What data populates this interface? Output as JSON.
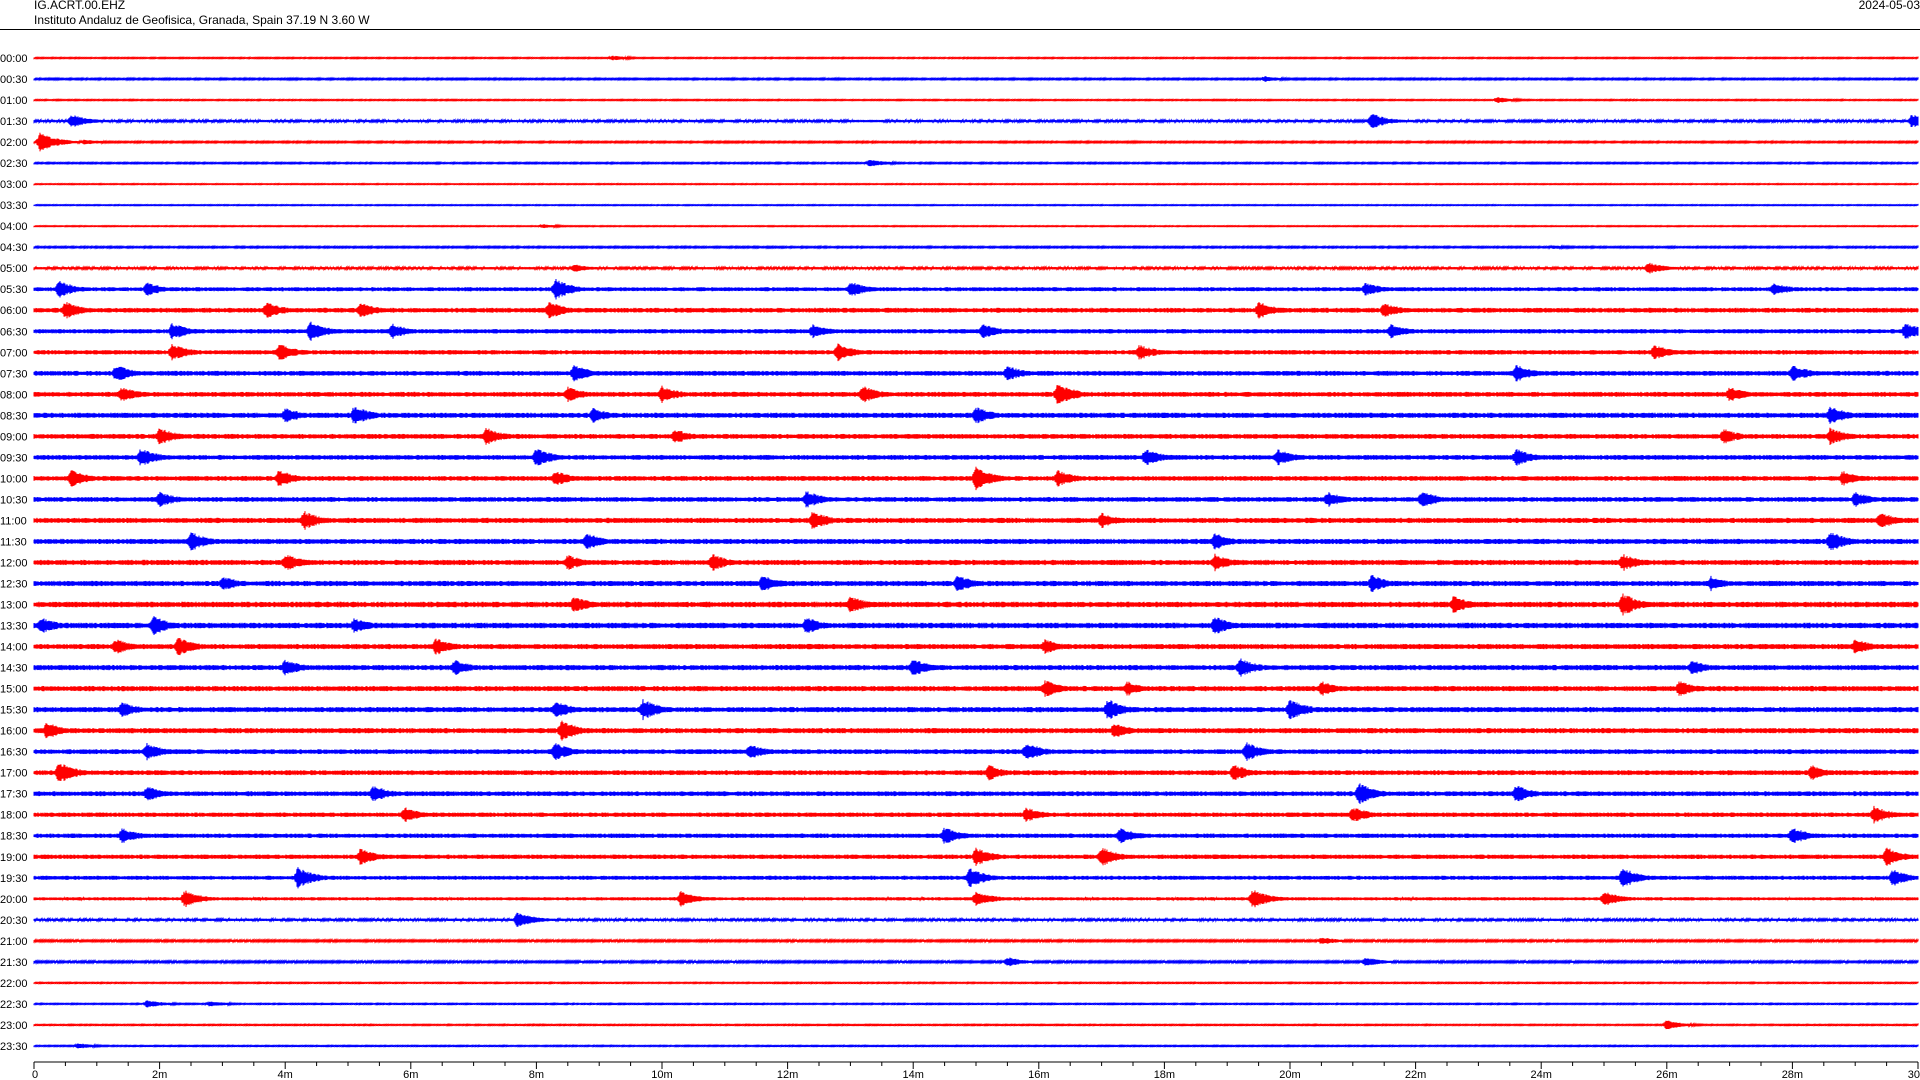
{
  "header": {
    "station": "IG.ACRT.00.EHZ",
    "institute": "Instituto Andaluz de Geofisica, Granada, Spain  37.19 N 3.60 W",
    "date": "2024-05-03"
  },
  "chart_data": {
    "type": "helicorder",
    "title": "IG.ACRT.00.EHZ",
    "x_unit": "minutes",
    "xlim": [
      0,
      30
    ],
    "x_ticks": [
      {
        "value": 0,
        "label": "0"
      },
      {
        "value": 2,
        "label": "2m"
      },
      {
        "value": 4,
        "label": "4m"
      },
      {
        "value": 6,
        "label": "6m"
      },
      {
        "value": 8,
        "label": "8m"
      },
      {
        "value": 10,
        "label": "10m"
      },
      {
        "value": 12,
        "label": "12m"
      },
      {
        "value": 14,
        "label": "14m"
      },
      {
        "value": 16,
        "label": "16m"
      },
      {
        "value": 18,
        "label": "18m"
      },
      {
        "value": 20,
        "label": "20m"
      },
      {
        "value": 22,
        "label": "22m"
      },
      {
        "value": 24,
        "label": "24m"
      },
      {
        "value": 26,
        "label": "26m"
      },
      {
        "value": 28,
        "label": "28m"
      },
      {
        "value": 30,
        "label": "30"
      }
    ],
    "row_labels": [
      "00:00",
      "00:30",
      "01:00",
      "01:30",
      "02:00",
      "02:30",
      "03:00",
      "03:30",
      "04:00",
      "04:30",
      "05:00",
      "05:30",
      "06:00",
      "06:30",
      "07:00",
      "07:30",
      "08:00",
      "08:30",
      "09:00",
      "09:30",
      "10:00",
      "10:30",
      "11:00",
      "11:30",
      "12:00",
      "12:30",
      "13:00",
      "13:30",
      "14:00",
      "14:30",
      "15:00",
      "15:30",
      "16:00",
      "16:30",
      "17:00",
      "17:30",
      "18:00",
      "18:30",
      "19:00",
      "19:30",
      "20:00",
      "20:30",
      "21:00",
      "21:30",
      "22:00",
      "22:30",
      "23:00",
      "23:30"
    ],
    "trace_colors": [
      "#ff0000",
      "#0000ff"
    ],
    "noise_level": [
      0.6,
      0.8,
      0.6,
      1.2,
      0.8,
      0.7,
      0.5,
      0.5,
      0.5,
      0.8,
      1.2,
      2.0,
      2.4,
      2.2,
      2.2,
      2.4,
      2.4,
      2.6,
      2.4,
      2.4,
      2.4,
      2.4,
      2.6,
      2.6,
      2.6,
      2.6,
      2.8,
      2.8,
      2.6,
      2.6,
      2.6,
      2.6,
      2.6,
      2.4,
      2.4,
      2.4,
      2.2,
      2.2,
      2.2,
      2.0,
      1.6,
      1.2,
      1.0,
      1.0,
      0.6,
      0.6,
      0.6,
      0.6
    ],
    "events": [
      {
        "row": 0,
        "t": 9.2,
        "amp": 2.5
      },
      {
        "row": 1,
        "t": 19.6,
        "amp": 3
      },
      {
        "row": 2,
        "t": 23.3,
        "amp": 3
      },
      {
        "row": 3,
        "t": 0.6,
        "amp": 7
      },
      {
        "row": 3,
        "t": 21.3,
        "amp": 8
      },
      {
        "row": 3,
        "t": 29.9,
        "amp": 7
      },
      {
        "row": 4,
        "t": 0.1,
        "amp": 10
      },
      {
        "row": 4,
        "t": 0.8,
        "amp": 3
      },
      {
        "row": 5,
        "t": 13.3,
        "amp": 4
      },
      {
        "row": 8,
        "t": 8.1,
        "amp": 2
      },
      {
        "row": 9,
        "t": 24.2,
        "amp": 2
      },
      {
        "row": 10,
        "t": 25.7,
        "amp": 6
      },
      {
        "row": 10,
        "t": 8.6,
        "amp": 4
      },
      {
        "row": 11,
        "t": 0.4,
        "amp": 9
      },
      {
        "row": 11,
        "t": 1.8,
        "amp": 7
      },
      {
        "row": 11,
        "t": 8.3,
        "amp": 11
      },
      {
        "row": 11,
        "t": 13.0,
        "amp": 8
      },
      {
        "row": 11,
        "t": 21.2,
        "amp": 7
      },
      {
        "row": 11,
        "t": 27.7,
        "amp": 7
      },
      {
        "row": 12,
        "t": 0.5,
        "amp": 9
      },
      {
        "row": 12,
        "t": 3.7,
        "amp": 9
      },
      {
        "row": 12,
        "t": 5.2,
        "amp": 8
      },
      {
        "row": 12,
        "t": 8.2,
        "amp": 9
      },
      {
        "row": 12,
        "t": 19.5,
        "amp": 9
      },
      {
        "row": 12,
        "t": 21.5,
        "amp": 8
      },
      {
        "row": 13,
        "t": 2.2,
        "amp": 9
      },
      {
        "row": 13,
        "t": 4.4,
        "amp": 10
      },
      {
        "row": 13,
        "t": 5.7,
        "amp": 8
      },
      {
        "row": 13,
        "t": 12.4,
        "amp": 7
      },
      {
        "row": 13,
        "t": 15.1,
        "amp": 8
      },
      {
        "row": 13,
        "t": 21.6,
        "amp": 8
      },
      {
        "row": 13,
        "t": 29.8,
        "amp": 9
      },
      {
        "row": 14,
        "t": 2.2,
        "amp": 9
      },
      {
        "row": 14,
        "t": 3.9,
        "amp": 9
      },
      {
        "row": 14,
        "t": 12.8,
        "amp": 9
      },
      {
        "row": 14,
        "t": 17.6,
        "amp": 8
      },
      {
        "row": 14,
        "t": 25.8,
        "amp": 8
      },
      {
        "row": 15,
        "t": 1.3,
        "amp": 9
      },
      {
        "row": 15,
        "t": 8.6,
        "amp": 9
      },
      {
        "row": 15,
        "t": 15.5,
        "amp": 8
      },
      {
        "row": 15,
        "t": 23.6,
        "amp": 9
      },
      {
        "row": 15,
        "t": 28.0,
        "amp": 9
      },
      {
        "row": 16,
        "t": 1.4,
        "amp": 8
      },
      {
        "row": 16,
        "t": 8.5,
        "amp": 8
      },
      {
        "row": 16,
        "t": 10.0,
        "amp": 9
      },
      {
        "row": 16,
        "t": 13.2,
        "amp": 9
      },
      {
        "row": 16,
        "t": 16.3,
        "amp": 12
      },
      {
        "row": 16,
        "t": 27.0,
        "amp": 8
      },
      {
        "row": 17,
        "t": 4.0,
        "amp": 8
      },
      {
        "row": 17,
        "t": 5.1,
        "amp": 10
      },
      {
        "row": 17,
        "t": 8.9,
        "amp": 8
      },
      {
        "row": 17,
        "t": 15.0,
        "amp": 9
      },
      {
        "row": 17,
        "t": 28.6,
        "amp": 10
      },
      {
        "row": 18,
        "t": 2.0,
        "amp": 9
      },
      {
        "row": 18,
        "t": 7.2,
        "amp": 9
      },
      {
        "row": 18,
        "t": 10.2,
        "amp": 8
      },
      {
        "row": 18,
        "t": 26.9,
        "amp": 8
      },
      {
        "row": 18,
        "t": 28.6,
        "amp": 9
      },
      {
        "row": 19,
        "t": 1.7,
        "amp": 10
      },
      {
        "row": 19,
        "t": 8.0,
        "amp": 10
      },
      {
        "row": 19,
        "t": 17.7,
        "amp": 9
      },
      {
        "row": 19,
        "t": 19.8,
        "amp": 9
      },
      {
        "row": 19,
        "t": 23.6,
        "amp": 9
      },
      {
        "row": 20,
        "t": 0.6,
        "amp": 9
      },
      {
        "row": 20,
        "t": 3.9,
        "amp": 9
      },
      {
        "row": 20,
        "t": 8.3,
        "amp": 8
      },
      {
        "row": 20,
        "t": 15.0,
        "amp": 12
      },
      {
        "row": 20,
        "t": 16.3,
        "amp": 9
      },
      {
        "row": 20,
        "t": 28.8,
        "amp": 8
      },
      {
        "row": 21,
        "t": 2.0,
        "amp": 8
      },
      {
        "row": 21,
        "t": 12.3,
        "amp": 9
      },
      {
        "row": 21,
        "t": 20.6,
        "amp": 8
      },
      {
        "row": 21,
        "t": 22.1,
        "amp": 9
      },
      {
        "row": 21,
        "t": 29.0,
        "amp": 8
      },
      {
        "row": 22,
        "t": 4.3,
        "amp": 10
      },
      {
        "row": 22,
        "t": 12.4,
        "amp": 10
      },
      {
        "row": 22,
        "t": 17.0,
        "amp": 8
      },
      {
        "row": 22,
        "t": 29.4,
        "amp": 9
      },
      {
        "row": 23,
        "t": 2.5,
        "amp": 10
      },
      {
        "row": 23,
        "t": 8.8,
        "amp": 9
      },
      {
        "row": 23,
        "t": 18.8,
        "amp": 9
      },
      {
        "row": 23,
        "t": 28.6,
        "amp": 11
      },
      {
        "row": 24,
        "t": 4.0,
        "amp": 9
      },
      {
        "row": 24,
        "t": 8.5,
        "amp": 8
      },
      {
        "row": 24,
        "t": 10.8,
        "amp": 9
      },
      {
        "row": 24,
        "t": 18.8,
        "amp": 9
      },
      {
        "row": 24,
        "t": 25.3,
        "amp": 9
      },
      {
        "row": 25,
        "t": 3.0,
        "amp": 8
      },
      {
        "row": 25,
        "t": 11.6,
        "amp": 9
      },
      {
        "row": 25,
        "t": 14.7,
        "amp": 9
      },
      {
        "row": 25,
        "t": 21.3,
        "amp": 9
      },
      {
        "row": 25,
        "t": 26.7,
        "amp": 8
      },
      {
        "row": 26,
        "t": 8.6,
        "amp": 9
      },
      {
        "row": 26,
        "t": 13.0,
        "amp": 9
      },
      {
        "row": 26,
        "t": 22.6,
        "amp": 9
      },
      {
        "row": 26,
        "t": 25.3,
        "amp": 12
      },
      {
        "row": 27,
        "t": 0.1,
        "amp": 9
      },
      {
        "row": 27,
        "t": 1.9,
        "amp": 10
      },
      {
        "row": 27,
        "t": 5.1,
        "amp": 8
      },
      {
        "row": 27,
        "t": 12.3,
        "amp": 9
      },
      {
        "row": 27,
        "t": 18.8,
        "amp": 10
      },
      {
        "row": 28,
        "t": 1.3,
        "amp": 8
      },
      {
        "row": 28,
        "t": 2.3,
        "amp": 10
      },
      {
        "row": 28,
        "t": 6.4,
        "amp": 9
      },
      {
        "row": 28,
        "t": 16.1,
        "amp": 8
      },
      {
        "row": 28,
        "t": 29.0,
        "amp": 8
      },
      {
        "row": 29,
        "t": 4.0,
        "amp": 9
      },
      {
        "row": 29,
        "t": 6.7,
        "amp": 8
      },
      {
        "row": 29,
        "t": 14.0,
        "amp": 9
      },
      {
        "row": 29,
        "t": 19.2,
        "amp": 10
      },
      {
        "row": 29,
        "t": 26.4,
        "amp": 8
      },
      {
        "row": 30,
        "t": 16.1,
        "amp": 9
      },
      {
        "row": 30,
        "t": 17.4,
        "amp": 8
      },
      {
        "row": 30,
        "t": 20.5,
        "amp": 8
      },
      {
        "row": 30,
        "t": 26.2,
        "amp": 8
      },
      {
        "row": 31,
        "t": 1.4,
        "amp": 8
      },
      {
        "row": 31,
        "t": 8.3,
        "amp": 9
      },
      {
        "row": 31,
        "t": 9.7,
        "amp": 11
      },
      {
        "row": 31,
        "t": 17.1,
        "amp": 11
      },
      {
        "row": 31,
        "t": 20.0,
        "amp": 11
      },
      {
        "row": 32,
        "t": 0.2,
        "amp": 9
      },
      {
        "row": 32,
        "t": 8.4,
        "amp": 11
      },
      {
        "row": 32,
        "t": 17.2,
        "amp": 8
      },
      {
        "row": 33,
        "t": 1.8,
        "amp": 9
      },
      {
        "row": 33,
        "t": 8.3,
        "amp": 9
      },
      {
        "row": 33,
        "t": 11.4,
        "amp": 8
      },
      {
        "row": 33,
        "t": 15.8,
        "amp": 10
      },
      {
        "row": 33,
        "t": 19.3,
        "amp": 10
      },
      {
        "row": 34,
        "t": 0.4,
        "amp": 11
      },
      {
        "row": 34,
        "t": 15.2,
        "amp": 8
      },
      {
        "row": 34,
        "t": 19.1,
        "amp": 9
      },
      {
        "row": 34,
        "t": 28.3,
        "amp": 8
      },
      {
        "row": 35,
        "t": 1.8,
        "amp": 8
      },
      {
        "row": 35,
        "t": 5.4,
        "amp": 9
      },
      {
        "row": 35,
        "t": 21.1,
        "amp": 11
      },
      {
        "row": 35,
        "t": 23.6,
        "amp": 9
      },
      {
        "row": 36,
        "t": 5.9,
        "amp": 8
      },
      {
        "row": 36,
        "t": 15.8,
        "amp": 8
      },
      {
        "row": 36,
        "t": 21.0,
        "amp": 8
      },
      {
        "row": 36,
        "t": 29.3,
        "amp": 9
      },
      {
        "row": 37,
        "t": 1.4,
        "amp": 8
      },
      {
        "row": 37,
        "t": 14.5,
        "amp": 9
      },
      {
        "row": 37,
        "t": 17.3,
        "amp": 9
      },
      {
        "row": 37,
        "t": 28.0,
        "amp": 9
      },
      {
        "row": 38,
        "t": 5.2,
        "amp": 9
      },
      {
        "row": 38,
        "t": 15.0,
        "amp": 10
      },
      {
        "row": 38,
        "t": 17.0,
        "amp": 10
      },
      {
        "row": 38,
        "t": 29.5,
        "amp": 10
      },
      {
        "row": 39,
        "t": 4.2,
        "amp": 11
      },
      {
        "row": 39,
        "t": 14.9,
        "amp": 10
      },
      {
        "row": 39,
        "t": 25.3,
        "amp": 11
      },
      {
        "row": 39,
        "t": 29.6,
        "amp": 9
      },
      {
        "row": 40,
        "t": 2.4,
        "amp": 9
      },
      {
        "row": 40,
        "t": 10.3,
        "amp": 8
      },
      {
        "row": 40,
        "t": 15.0,
        "amp": 8
      },
      {
        "row": 40,
        "t": 19.4,
        "amp": 10
      },
      {
        "row": 40,
        "t": 25.0,
        "amp": 8
      },
      {
        "row": 41,
        "t": 7.7,
        "amp": 8
      },
      {
        "row": 42,
        "t": 20.5,
        "amp": 4
      },
      {
        "row": 43,
        "t": 15.5,
        "amp": 5
      },
      {
        "row": 43,
        "t": 21.2,
        "amp": 5
      },
      {
        "row": 45,
        "t": 1.8,
        "amp": 4
      },
      {
        "row": 45,
        "t": 2.8,
        "amp": 3
      },
      {
        "row": 46,
        "t": 26.0,
        "amp": 5
      },
      {
        "row": 47,
        "t": 0.7,
        "amp": 3
      }
    ]
  }
}
